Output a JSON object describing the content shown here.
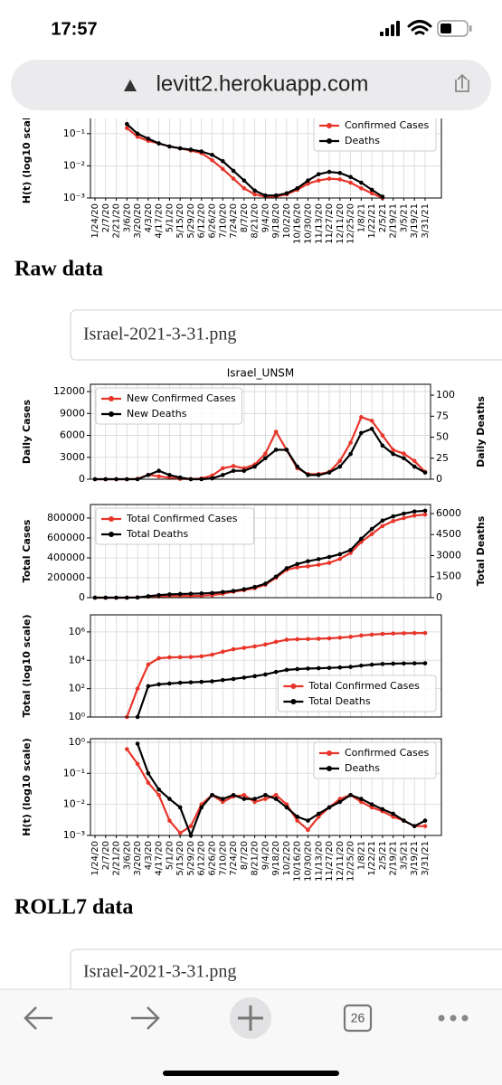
{
  "status": {
    "time": "17:57"
  },
  "browser": {
    "url": "levitt2.herokuapp.com",
    "tabs": "26"
  },
  "headings": [
    "Raw data",
    "ROLL7 data"
  ],
  "files": [
    "Israel-2021-3-31.png",
    "Israel-2021-3-31.png"
  ],
  "x_dates": [
    "1/24/20",
    "2/7/20",
    "2/21/20",
    "3/6/20",
    "3/20/20",
    "4/3/20",
    "4/17/20",
    "5/1/20",
    "5/15/20",
    "5/29/20",
    "6/12/20",
    "6/26/20",
    "7/10/20",
    "7/24/20",
    "8/7/20",
    "8/21/20",
    "9/4/20",
    "9/18/20",
    "10/2/20",
    "10/16/20",
    "10/30/20",
    "11/13/20",
    "11/27/20",
    "12/11/20",
    "12/25/20",
    "1/8/21",
    "1/22/21",
    "2/5/21",
    "2/19/21",
    "3/5/21",
    "3/19/21",
    "3/31/21"
  ],
  "chart_data": [
    {
      "type": "line",
      "ylabel": "H(t) (log10 scale)",
      "log": true,
      "grid": true,
      "legend": "upper right",
      "ylim": [
        0.001,
        0.5
      ],
      "yticks": [
        {
          "value": 0.1,
          "label": "10⁻¹"
        },
        {
          "value": 0.01,
          "label": "10⁻²"
        },
        {
          "value": 0.001,
          "label": "10⁻³"
        }
      ],
      "series": [
        {
          "name": "Confirmed Cases",
          "color": "#e8352a",
          "values": [
            null,
            null,
            null,
            0.15,
            0.08,
            0.06,
            0.05,
            0.04,
            0.035,
            0.03,
            0.025,
            0.015,
            0.008,
            0.004,
            0.002,
            0.0013,
            0.0011,
            0.0011,
            0.0013,
            0.0018,
            0.0028,
            0.0035,
            0.004,
            0.0038,
            0.003,
            0.002,
            0.0014,
            0.001,
            null,
            null,
            null,
            null
          ]
        },
        {
          "name": "Deaths",
          "color": "#000000",
          "values": [
            null,
            null,
            null,
            0.2,
            0.1,
            0.07,
            0.05,
            0.04,
            0.035,
            0.032,
            0.028,
            0.022,
            0.014,
            0.007,
            0.0035,
            0.0017,
            0.0012,
            0.0012,
            0.0014,
            0.002,
            0.0035,
            0.0055,
            0.0065,
            0.006,
            0.0045,
            0.003,
            0.0018,
            0.0011,
            null,
            null,
            null,
            null
          ]
        }
      ]
    },
    {
      "type": "line",
      "title": "Israel_UNSM",
      "ylabel": "Daily Cases",
      "y2label": "Daily Deaths",
      "grid": true,
      "legend": "upper left",
      "ylim": [
        0,
        13000
      ],
      "yticks": [
        0,
        3000,
        6000,
        9000,
        12000
      ],
      "y2lim": [
        0,
        113
      ],
      "y2ticks": [
        0,
        25,
        50,
        75,
        100
      ],
      "series": [
        {
          "name": "New Confirmed Cases",
          "color": "#e8352a",
          "values": [
            0,
            0,
            0,
            0,
            50,
            600,
            400,
            200,
            50,
            20,
            100,
            500,
            1500,
            1800,
            1500,
            2000,
            3500,
            6500,
            4000,
            1500,
            700,
            700,
            1000,
            2500,
            5000,
            8500,
            8000,
            6000,
            4000,
            3500,
            2500,
            1000
          ]
        },
        {
          "name": "New Deaths",
          "color": "#000000",
          "axis": "y2",
          "values": [
            0,
            0,
            0,
            0,
            0,
            5,
            10,
            5,
            2,
            0,
            0,
            1,
            5,
            10,
            10,
            15,
            25,
            35,
            35,
            15,
            5,
            5,
            8,
            15,
            30,
            55,
            60,
            40,
            30,
            25,
            15,
            8
          ]
        }
      ]
    },
    {
      "type": "line",
      "ylabel": "Total Cases",
      "y2label": "Total Deaths",
      "grid": true,
      "legend": "upper left",
      "ylim": [
        0,
        936000
      ],
      "yticks": [
        0,
        200000,
        400000,
        600000,
        800000
      ],
      "y2lim": [
        0,
        6645
      ],
      "y2ticks": [
        0,
        1500,
        3000,
        4500,
        6000
      ],
      "series": [
        {
          "name": "Total Confirmed Cases",
          "color": "#e8352a",
          "values": [
            0,
            0,
            10,
            100,
            3000,
            9000,
            13000,
            16000,
            16500,
            17000,
            19000,
            25000,
            40000,
            60000,
            75000,
            95000,
            130000,
            200000,
            280000,
            305000,
            315000,
            330000,
            350000,
            390000,
            450000,
            560000,
            640000,
            720000,
            770000,
            800000,
            825000,
            835000
          ]
        },
        {
          "name": "Total Deaths",
          "color": "#000000",
          "axis": "y2",
          "values": [
            0,
            0,
            0,
            0,
            10,
            100,
            180,
            230,
            260,
            280,
            300,
            330,
            400,
            480,
            600,
            760,
            1000,
            1500,
            2100,
            2400,
            2600,
            2750,
            2900,
            3100,
            3400,
            4200,
            4900,
            5500,
            5800,
            6000,
            6150,
            6200
          ]
        }
      ]
    },
    {
      "type": "line",
      "ylabel": "Total (log10 scale)",
      "log": true,
      "grid": true,
      "legend": "lower right",
      "ylim": [
        1,
        16000000
      ],
      "yticks": [
        {
          "value": 1,
          "label": "10⁰"
        },
        {
          "value": 100,
          "label": "10²"
        },
        {
          "value": 10000,
          "label": "10⁴"
        },
        {
          "value": 1000000,
          "label": "10⁶"
        }
      ],
      "series": [
        {
          "name": "Total Confirmed Cases",
          "color": "#e8352a",
          "values": [
            null,
            null,
            null,
            1,
            100,
            5000,
            14000,
            16000,
            16500,
            17000,
            19000,
            25000,
            40000,
            60000,
            75000,
            95000,
            130000,
            200000,
            280000,
            305000,
            315000,
            330000,
            350000,
            390000,
            450000,
            560000,
            640000,
            720000,
            770000,
            800000,
            825000,
            835000
          ]
        },
        {
          "name": "Total Deaths",
          "color": "#000000",
          "values": [
            null,
            null,
            null,
            null,
            1,
            150,
            200,
            230,
            260,
            280,
            300,
            330,
            400,
            480,
            600,
            760,
            1000,
            1500,
            2100,
            2400,
            2600,
            2750,
            2900,
            3100,
            3400,
            4200,
            4900,
            5500,
            5800,
            6000,
            6150,
            6200
          ]
        }
      ]
    },
    {
      "type": "line",
      "ylabel": "H(t) (log10 scale)",
      "log": true,
      "grid": true,
      "legend": "upper right",
      "ylim": [
        0.001,
        1.3
      ],
      "yticks": [
        {
          "value": 1,
          "label": "10⁰"
        },
        {
          "value": 0.1,
          "label": "10⁻¹"
        },
        {
          "value": 0.01,
          "label": "10⁻²"
        },
        {
          "value": 0.001,
          "label": "10⁻³"
        }
      ],
      "series": [
        {
          "name": "Confirmed Cases",
          "color": "#e8352a",
          "values": [
            null,
            null,
            null,
            0.6,
            0.2,
            0.05,
            0.02,
            0.003,
            0.0012,
            0.002,
            0.01,
            0.02,
            0.012,
            0.018,
            0.02,
            0.012,
            0.015,
            0.02,
            0.01,
            0.003,
            0.0015,
            0.004,
            0.008,
            0.015,
            0.02,
            0.012,
            0.008,
            0.006,
            0.004,
            0.003,
            0.002,
            0.002
          ]
        },
        {
          "name": "Deaths",
          "color": "#000000",
          "values": [
            null,
            null,
            null,
            null,
            0.9,
            0.1,
            0.03,
            0.015,
            0.008,
            0.001,
            0.008,
            0.02,
            0.015,
            0.02,
            0.015,
            0.015,
            0.02,
            0.015,
            0.008,
            0.004,
            0.003,
            0.005,
            0.008,
            0.012,
            0.02,
            0.015,
            0.01,
            0.007,
            0.005,
            0.003,
            0.002,
            0.003
          ]
        }
      ]
    }
  ]
}
